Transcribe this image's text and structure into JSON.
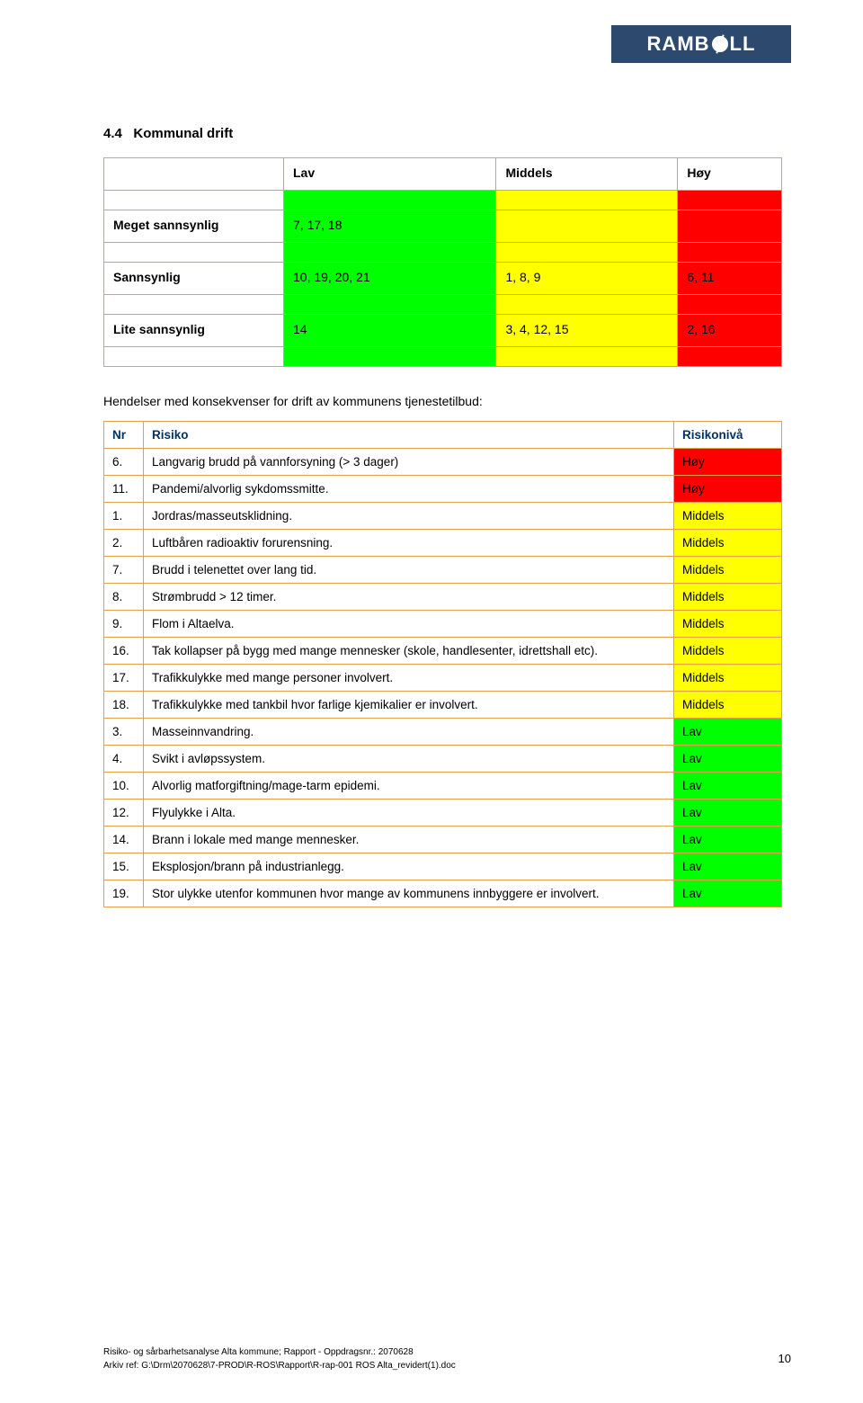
{
  "logo_text_pre": "RAMB",
  "logo_text_post": "LL",
  "section_number": "4.4",
  "section_title": "Kommunal drift",
  "matrix": {
    "columns": [
      "",
      "Lav",
      "Middels",
      "Høy"
    ],
    "col_colors": [
      "",
      "#00ff00",
      "#ffff00",
      "#ff0000"
    ],
    "rows": [
      {
        "label": "Meget sannsynlig",
        "cells": [
          "7, 17, 18",
          "",
          ""
        ]
      },
      {
        "label": "Sannsynlig",
        "cells": [
          "10, 19, 20, 21",
          "1, 8, 9",
          "6, 11"
        ]
      },
      {
        "label": "Lite sannsynlig",
        "cells": [
          "14",
          "3, 4, 12, 15",
          "2, 16"
        ]
      }
    ]
  },
  "intro_text": "Hendelser med konsekvenser for drift av kommunens tjenestetilbud:",
  "risk_table": {
    "header": {
      "nr": "Nr",
      "risk": "Risiko",
      "level": "Risikonivå"
    },
    "rows": [
      {
        "nr": "6.",
        "risk": "Langvarig brudd på vannforsyning (> 3 dager)",
        "level": "Høy",
        "color": "#ff0000"
      },
      {
        "nr": "11.",
        "risk": "Pandemi/alvorlig sykdomssmitte.",
        "level": "Høy",
        "color": "#ff0000"
      },
      {
        "nr": "1.",
        "risk": "Jordras/masseutsklidning.",
        "level": "Middels",
        "color": "#ffff00"
      },
      {
        "nr": "2.",
        "risk": "Luftbåren radioaktiv forurensning.",
        "level": "Middels",
        "color": "#ffff00"
      },
      {
        "nr": "7.",
        "risk": "Brudd i telenettet over lang tid.",
        "level": "Middels",
        "color": "#ffff00"
      },
      {
        "nr": "8.",
        "risk": "Strømbrudd > 12 timer.",
        "level": "Middels",
        "color": "#ffff00"
      },
      {
        "nr": "9.",
        "risk": "Flom i Altaelva.",
        "level": "Middels",
        "color": "#ffff00"
      },
      {
        "nr": "16.",
        "risk": "Tak kollapser på bygg med mange mennesker (skole, handlesenter, idrettshall etc).",
        "level": "Middels",
        "color": "#ffff00"
      },
      {
        "nr": "17.",
        "risk": "Trafikkulykke med mange personer involvert.",
        "level": "Middels",
        "color": "#ffff00"
      },
      {
        "nr": "18.",
        "risk": "Trafikkulykke med tankbil hvor farlige kjemikalier er involvert.",
        "level": "Middels",
        "color": "#ffff00"
      },
      {
        "nr": "3.",
        "risk": "Masseinnvandring.",
        "level": "Lav",
        "color": "#00ff00"
      },
      {
        "nr": "4.",
        "risk": "Svikt i avløpssystem.",
        "level": "Lav",
        "color": "#00ff00"
      },
      {
        "nr": "10.",
        "risk": "Alvorlig matforgiftning/mage-tarm epidemi.",
        "level": "Lav",
        "color": "#00ff00"
      },
      {
        "nr": "12.",
        "risk": "Flyulykke i Alta.",
        "level": "Lav",
        "color": "#00ff00"
      },
      {
        "nr": "14.",
        "risk": "Brann i lokale med mange mennesker.",
        "level": "Lav",
        "color": "#00ff00"
      },
      {
        "nr": "15.",
        "risk": "Eksplosjon/brann på industrianlegg.",
        "level": "Lav",
        "color": "#00ff00"
      },
      {
        "nr": "19.",
        "risk": "Stor ulykke utenfor kommunen hvor mange av kommunens innbyggere er involvert.",
        "level": "Lav",
        "color": "#00ff00"
      }
    ]
  },
  "footer": {
    "line1": "Risiko- og sårbarhetsanalyse Alta kommune; Rapport - Oppdragsnr.:  2070628",
    "line2": "Arkiv ref: G:\\Drm\\2070628\\7-PROD\\R-ROS\\Rapport\\R-rap-001 ROS Alta_revidert(1).doc",
    "pagenum": "10"
  }
}
